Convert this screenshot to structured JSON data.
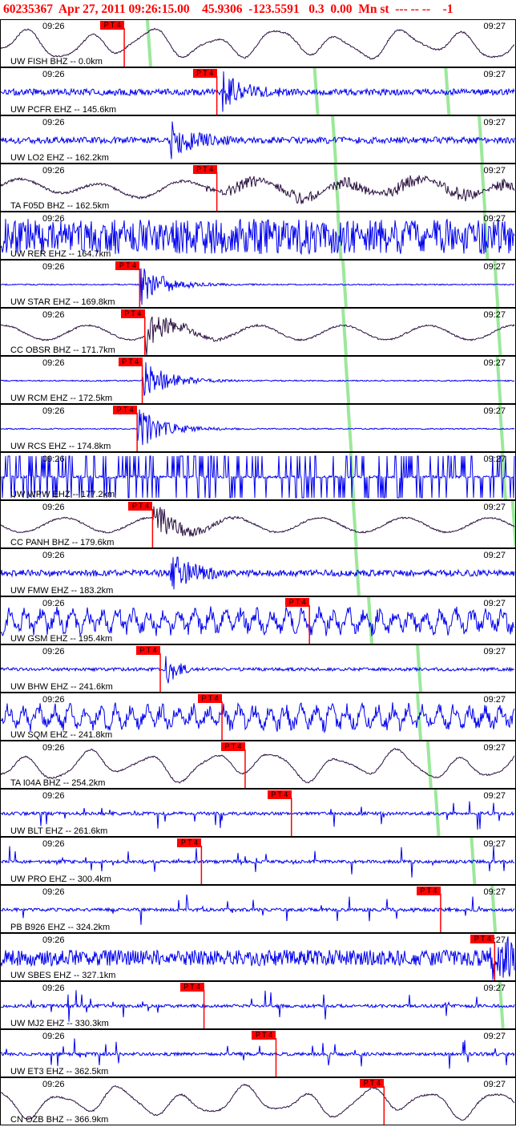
{
  "header": {
    "text": "60235367  Apr 27, 2011 09:26:15.00    45.9306  -123.5591   0.3  0.00  Mn st  --- -- --    -1"
  },
  "colors": {
    "header": "#ff0000",
    "pick": "#ff0000",
    "green_line": "#9be89b",
    "blue": "#0000ee",
    "dark": "#2a1040"
  },
  "chart_data": {
    "type": "line",
    "title": "60235367  Apr 27, 2011 09:26:15.00    45.9306  -123.5591   0.3  0.00  Mn st  --- -- --    -1",
    "x_ticks": [
      "09:26",
      "09:27"
    ],
    "pick_label": "P T 4",
    "traces": [
      {
        "station": "UW FISH BHZ -- 0.0km",
        "color": "dark",
        "style": "long",
        "pick": 0.24,
        "green": [
          0.285
        ]
      },
      {
        "station": "UW PCFR EHZ -- 145.6km",
        "color": "blue",
        "style": "burst",
        "pick": 0.42,
        "green": [
          0.61,
          0.865
        ]
      },
      {
        "station": "UW LO2 EHZ -- 162.2km",
        "color": "blue",
        "style": "burst",
        "pick": null,
        "green": [
          0.645,
          0.93
        ]
      },
      {
        "station": "TA F05D BHZ -- 162.5km",
        "color": "dark",
        "style": "mixed",
        "pick": 0.42,
        "green": [
          0.65,
          0.935
        ]
      },
      {
        "station": "UW RER EHZ -- 164.7km",
        "color": "blue",
        "style": "noise",
        "pick": null,
        "green": [
          0.655,
          0.94
        ]
      },
      {
        "station": "UW STAR EHZ -- 169.8km",
        "color": "blue",
        "style": "quake",
        "pick": 0.27,
        "green": [
          0.665,
          0.96
        ]
      },
      {
        "station": "CC OBSR BHZ -- 171.7km",
        "color": "dark",
        "style": "quakel",
        "pick": 0.28,
        "green": [
          0.665,
          0.965
        ]
      },
      {
        "station": "UW RCM EHZ -- 172.5km",
        "color": "blue",
        "style": "quake",
        "pick": 0.275,
        "green": [
          0.67,
          0.965
        ]
      },
      {
        "station": "UW RCS EHZ -- 174.8km",
        "color": "blue",
        "style": "quake",
        "pick": 0.265,
        "green": [
          0.675,
          0.97
        ]
      },
      {
        "station": "UW WPW EHZ -- 177.2km",
        "color": "blue",
        "style": "spikes",
        "pick": null,
        "green": [
          0.68,
          0.975
        ]
      },
      {
        "station": "CC PANH BHZ -- 179.6km",
        "color": "dark",
        "style": "quakel",
        "pick": 0.295,
        "green": [
          0.685,
          0.995
        ]
      },
      {
        "station": "UW FMW EHZ -- 183.2km",
        "color": "blue",
        "style": "burst",
        "pick": null,
        "green": [
          0.69
        ]
      },
      {
        "station": "UW GSM EHZ -- 195.4km",
        "color": "blue",
        "style": "noisy",
        "pick": 0.6,
        "green": [
          0.715
        ]
      },
      {
        "station": "UW BHW EHZ -- 241.6km",
        "color": "blue",
        "style": "quiet",
        "pick": 0.31,
        "green": [
          0.81
        ]
      },
      {
        "station": "UW SQM EHZ -- 241.8km",
        "color": "blue",
        "style": "noisy",
        "pick": 0.43,
        "green": [
          0.81
        ]
      },
      {
        "station": "TA I04A BHZ -- 254.2km",
        "color": "dark",
        "style": "long",
        "pick": 0.475,
        "green": [
          0.83
        ]
      },
      {
        "station": "UW BLT EHZ -- 261.6km",
        "color": "blue",
        "style": "sparse",
        "pick": 0.565,
        "green": [
          0.845
        ]
      },
      {
        "station": "UW PRO EHZ -- 300.4km",
        "color": "blue",
        "style": "sparse",
        "pick": 0.39,
        "green": [
          0.915
        ]
      },
      {
        "station": "PB B926 EHZ -- 324.2km",
        "color": "blue",
        "style": "sparse",
        "pick": 0.855,
        "green": [
          0.955
        ]
      },
      {
        "station": "UW SBES EHZ -- 327.1km",
        "color": "blue",
        "style": "end",
        "pick": 0.96,
        "green": []
      },
      {
        "station": "UW MJ2 EHZ -- 330.3km",
        "color": "blue",
        "style": "sparse",
        "pick": 0.395,
        "green": [
          0.97
        ]
      },
      {
        "station": "UW ET3 EHZ -- 362.5km",
        "color": "blue",
        "style": "sparse",
        "pick": 0.535,
        "green": []
      },
      {
        "station": "CN OZB BHZ -- 366.9km",
        "color": "dark",
        "style": "long",
        "pick": 0.745,
        "green": []
      }
    ]
  }
}
